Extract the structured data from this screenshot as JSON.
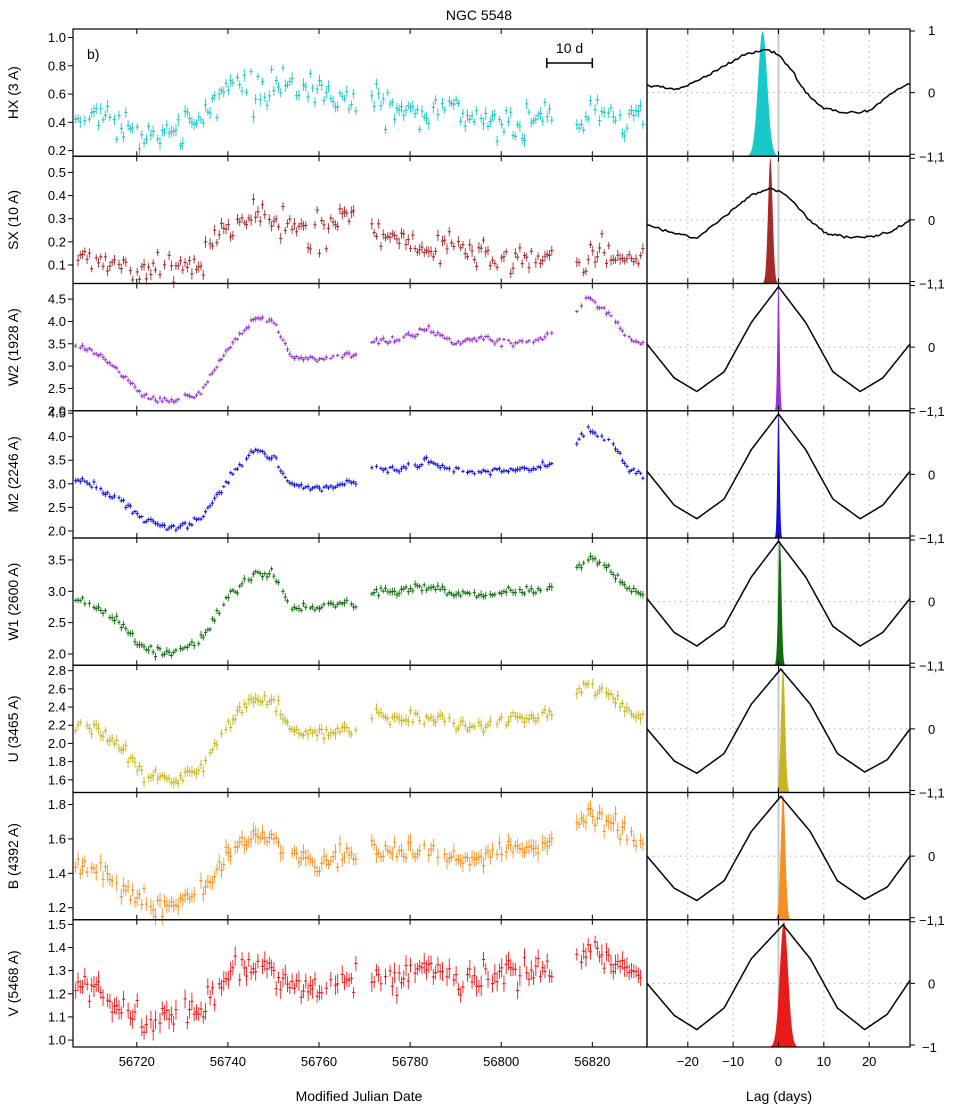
{
  "chart_data": {
    "type": "scatter",
    "title": "NGC 5548",
    "panel_label": "b)",
    "scale_bar_label": "10 d",
    "scale_bar_days": [
      56810,
      56820
    ],
    "left_xlabel": "Modified Julian Date",
    "right_xlabel": "Lag (days)",
    "left_xlim": [
      56706,
      56832
    ],
    "right_xlim": [
      -29,
      29
    ],
    "left_xticks": [
      56720,
      56740,
      56760,
      56780,
      56800,
      56820
    ],
    "right_xticks": [
      -20,
      -10,
      0,
      10,
      20
    ],
    "right_yticks": [
      -1,
      0,
      1
    ],
    "grid": "dotted gridlines in right-hand panels only",
    "data_gaps": [
      [
        56768.5,
        56771.5
      ],
      [
        56811.5,
        56816.5
      ]
    ],
    "series": [
      {
        "name": "HX (3 A)",
        "color": "#19c8c8",
        "ylim": [
          0.16,
          1.06
        ],
        "yticks": [
          0.2,
          0.4,
          0.6,
          0.8,
          1.0
        ],
        "curve": {
          "t": [
            56706,
            56714,
            56722,
            56730,
            56736,
            56740,
            56746,
            56752,
            56758,
            56764,
            56768,
            56772,
            56778,
            56784,
            56790,
            56796,
            56802,
            56808,
            56812,
            56817,
            56822,
            56826,
            56832
          ],
          "y": [
            0.42,
            0.45,
            0.3,
            0.4,
            0.45,
            0.7,
            0.63,
            0.64,
            0.66,
            0.58,
            0.55,
            0.56,
            0.47,
            0.45,
            0.5,
            0.42,
            0.4,
            0.4,
            0.5,
            0.35,
            0.55,
            0.4,
            0.48
          ]
        },
        "noise": 0.08,
        "errbar": 0.035,
        "ccf_peak_lag": -3.5,
        "ccf_peak_width": 1.0
      },
      {
        "name": "SX (10 A)",
        "color": "#a52a2a",
        "ylim": [
          0.02,
          0.57
        ],
        "yticks": [
          0.1,
          0.2,
          0.3,
          0.4,
          0.5
        ],
        "curve": {
          "t": [
            56706,
            56714,
            56722,
            56730,
            56734,
            56740,
            56746,
            56752,
            56758,
            56764,
            56768,
            56772,
            56778,
            56784,
            56790,
            56796,
            56802,
            56808,
            56812,
            56817,
            56822,
            56826,
            56832
          ],
          "y": [
            0.15,
            0.12,
            0.08,
            0.1,
            0.12,
            0.28,
            0.32,
            0.3,
            0.23,
            0.3,
            0.33,
            0.24,
            0.22,
            0.16,
            0.2,
            0.13,
            0.12,
            0.12,
            0.18,
            0.1,
            0.17,
            0.12,
            0.16
          ]
        },
        "noise": 0.045,
        "errbar": 0.02,
        "ccf_peak_lag": -1.8,
        "ccf_peak_width": 0.5
      },
      {
        "name": "W2 (1928 A)",
        "color": "#9b30d0",
        "ylim": [
          2.0,
          4.85
        ],
        "yticks": [
          2.0,
          2.5,
          3.0,
          3.5,
          4.0,
          4.5
        ],
        "curve": {
          "t": [
            56706,
            56712,
            56716,
            56722,
            56728,
            56734,
            56740,
            56746,
            56750,
            56754,
            56760,
            56768,
            56772,
            56778,
            56784,
            56790,
            56796,
            56802,
            56808,
            56814,
            56819,
            56824,
            56828,
            56832
          ],
          "y": [
            3.5,
            3.25,
            2.9,
            2.3,
            2.2,
            2.4,
            3.4,
            4.05,
            4.0,
            3.2,
            3.15,
            3.3,
            3.55,
            3.6,
            3.85,
            3.5,
            3.65,
            3.5,
            3.6,
            3.9,
            4.55,
            4.15,
            3.6,
            3.5
          ]
        },
        "noise": 0.05,
        "errbar": 0.05,
        "ccf_peak_lag": 0.0,
        "ccf_peak_width": 0.25
      },
      {
        "name": "M2 (2246 A)",
        "color": "#1010d8",
        "ylim": [
          1.85,
          4.55
        ],
        "yticks": [
          2.0,
          2.5,
          3.0,
          3.5,
          4.0,
          4.5
        ],
        "curve": {
          "t": [
            56706,
            56712,
            56716,
            56722,
            56728,
            56734,
            56740,
            56746,
            56750,
            56754,
            56760,
            56768,
            56772,
            56778,
            56784,
            56790,
            56796,
            56802,
            56808,
            56814,
            56819,
            56824,
            56828,
            56832
          ],
          "y": [
            3.15,
            2.85,
            2.7,
            2.2,
            2.05,
            2.25,
            3.1,
            3.75,
            3.55,
            2.95,
            2.9,
            3.05,
            3.35,
            3.3,
            3.5,
            3.25,
            3.25,
            3.3,
            3.35,
            3.55,
            4.15,
            3.9,
            3.3,
            3.15
          ]
        },
        "noise": 0.05,
        "errbar": 0.05,
        "ccf_peak_lag": 0.0,
        "ccf_peak_width": 0.25
      },
      {
        "name": "W1 (2600 A)",
        "color": "#0e6e0e",
        "ylim": [
          1.82,
          3.85
        ],
        "yticks": [
          2.0,
          2.5,
          3.0,
          3.5
        ],
        "curve": {
          "t": [
            56706,
            56712,
            56716,
            56722,
            56728,
            56734,
            56740,
            56746,
            56750,
            56754,
            56760,
            56768,
            56772,
            56778,
            56784,
            56790,
            56796,
            56802,
            56808,
            56814,
            56819,
            56824,
            56828,
            56832
          ],
          "y": [
            2.9,
            2.7,
            2.55,
            2.05,
            2.0,
            2.2,
            2.9,
            3.3,
            3.25,
            2.75,
            2.75,
            2.8,
            3.0,
            3.0,
            3.1,
            2.95,
            2.95,
            3.0,
            3.0,
            3.15,
            3.55,
            3.35,
            3.0,
            2.95
          ]
        },
        "noise": 0.05,
        "errbar": 0.05,
        "ccf_peak_lag": 0.3,
        "ccf_peak_width": 0.35
      },
      {
        "name": "U (3465 A)",
        "color": "#c8b41e",
        "ylim": [
          1.46,
          2.86
        ],
        "yticks": [
          1.6,
          1.8,
          2.0,
          2.2,
          2.4,
          2.6,
          2.8
        ],
        "curve": {
          "t": [
            56706,
            56712,
            56716,
            56722,
            56728,
            56734,
            56740,
            56746,
            56750,
            56754,
            56760,
            56768,
            56772,
            56778,
            56784,
            56790,
            56796,
            56802,
            56808,
            56814,
            56819,
            56824,
            56828,
            56832
          ],
          "y": [
            2.2,
            2.15,
            1.95,
            1.65,
            1.6,
            1.7,
            2.2,
            2.5,
            2.45,
            2.15,
            2.1,
            2.15,
            2.35,
            2.25,
            2.3,
            2.2,
            2.2,
            2.25,
            2.3,
            2.4,
            2.65,
            2.55,
            2.35,
            2.3
          ]
        },
        "noise": 0.05,
        "errbar": 0.05,
        "ccf_peak_lag": 1.0,
        "ccf_peak_width": 0.45
      },
      {
        "name": "B (4392 A)",
        "color": "#f5901e",
        "ylim": [
          1.13,
          1.87
        ],
        "yticks": [
          1.2,
          1.4,
          1.6,
          1.8
        ],
        "curve": {
          "t": [
            56706,
            56712,
            56716,
            56722,
            56728,
            56734,
            56740,
            56746,
            56750,
            56754,
            56760,
            56768,
            56772,
            56778,
            56784,
            56790,
            56796,
            56802,
            56808,
            56814,
            56819,
            56824,
            56828,
            56832
          ],
          "y": [
            1.45,
            1.42,
            1.33,
            1.2,
            1.22,
            1.3,
            1.5,
            1.62,
            1.6,
            1.48,
            1.45,
            1.5,
            1.55,
            1.52,
            1.55,
            1.5,
            1.5,
            1.55,
            1.55,
            1.62,
            1.75,
            1.7,
            1.6,
            1.55
          ]
        },
        "noise": 0.04,
        "errbar": 0.04,
        "ccf_peak_lag": 1.0,
        "ccf_peak_width": 0.5
      },
      {
        "name": "V (5468 A)",
        "color": "#e81a1a",
        "ylim": [
          0.97,
          1.52
        ],
        "yticks": [
          1.0,
          1.1,
          1.2,
          1.3,
          1.4,
          1.5
        ],
        "curve": {
          "t": [
            56706,
            56712,
            56716,
            56722,
            56728,
            56734,
            56740,
            56746,
            56750,
            56754,
            56760,
            56768,
            56772,
            56778,
            56784,
            56790,
            56796,
            56802,
            56808,
            56814,
            56819,
            56824,
            56828,
            56832
          ],
          "y": [
            1.25,
            1.2,
            1.12,
            1.08,
            1.1,
            1.15,
            1.28,
            1.33,
            1.3,
            1.25,
            1.22,
            1.25,
            1.27,
            1.28,
            1.3,
            1.27,
            1.28,
            1.3,
            1.3,
            1.33,
            1.38,
            1.35,
            1.3,
            1.28
          ]
        },
        "noise": 0.04,
        "errbar": 0.035,
        "ccf_peak_lag": 1.2,
        "ccf_peak_width": 0.9
      }
    ],
    "ccf_curves": [
      {
        "panel": "HX (3 A)",
        "lag": [
          -29,
          -22,
          -15,
          -8,
          -3,
          0,
          3,
          6,
          10,
          15,
          20,
          25,
          29
        ],
        "r": [
          0.12,
          0.05,
          0.3,
          0.6,
          0.7,
          0.62,
          0.35,
          0.0,
          -0.25,
          -0.33,
          -0.3,
          0.0,
          0.16
        ]
      },
      {
        "panel": "SX (10 A)",
        "lag": [
          -29,
          -24,
          -18,
          -12,
          -6,
          -2,
          2,
          6,
          10,
          15,
          20,
          25,
          29
        ],
        "r": [
          -0.08,
          -0.2,
          -0.3,
          0.05,
          0.4,
          0.52,
          0.4,
          0.05,
          -0.2,
          -0.28,
          -0.28,
          -0.2,
          0.0
        ]
      },
      {
        "panel": "W2 (1928 A)",
        "lag": [
          -29,
          -23,
          -18,
          -12,
          -6,
          0,
          6,
          12,
          18,
          23,
          29
        ],
        "r": [
          0.05,
          -0.5,
          -0.72,
          -0.4,
          0.4,
          0.98,
          0.4,
          -0.4,
          -0.72,
          -0.5,
          0.05
        ]
      },
      {
        "panel": "M2 (2246 A)",
        "lag": [
          -29,
          -23,
          -18,
          -12,
          -6,
          0,
          6,
          12,
          18,
          23,
          29
        ],
        "r": [
          0.05,
          -0.5,
          -0.72,
          -0.4,
          0.4,
          0.98,
          0.4,
          -0.4,
          -0.72,
          -0.5,
          0.05
        ]
      },
      {
        "panel": "W1 (2600 A)",
        "lag": [
          -29,
          -23,
          -18,
          -12,
          -6,
          0,
          6,
          12,
          18,
          23,
          29
        ],
        "r": [
          0.05,
          -0.5,
          -0.72,
          -0.4,
          0.4,
          0.98,
          0.4,
          -0.4,
          -0.72,
          -0.5,
          0.05
        ]
      },
      {
        "panel": "U (3465 A)",
        "lag": [
          -29,
          -23,
          -18,
          -12,
          -6,
          0.5,
          7,
          13,
          19,
          24,
          29
        ],
        "r": [
          0.0,
          -0.52,
          -0.72,
          -0.4,
          0.4,
          0.97,
          0.4,
          -0.4,
          -0.7,
          -0.5,
          0.0
        ]
      },
      {
        "panel": "B (4392 A)",
        "lag": [
          -29,
          -23,
          -18,
          -12,
          -6,
          0.5,
          7,
          13,
          19,
          24,
          29
        ],
        "r": [
          0.0,
          -0.52,
          -0.72,
          -0.4,
          0.4,
          0.97,
          0.4,
          -0.4,
          -0.7,
          -0.5,
          0.0
        ]
      },
      {
        "panel": "V (5468 A)",
        "lag": [
          -29,
          -23,
          -18,
          -12,
          -6,
          1,
          7,
          13,
          19,
          24,
          29
        ],
        "r": [
          0.0,
          -0.52,
          -0.75,
          -0.4,
          0.4,
          0.95,
          0.4,
          -0.4,
          -0.75,
          -0.5,
          0.05
        ]
      }
    ]
  }
}
